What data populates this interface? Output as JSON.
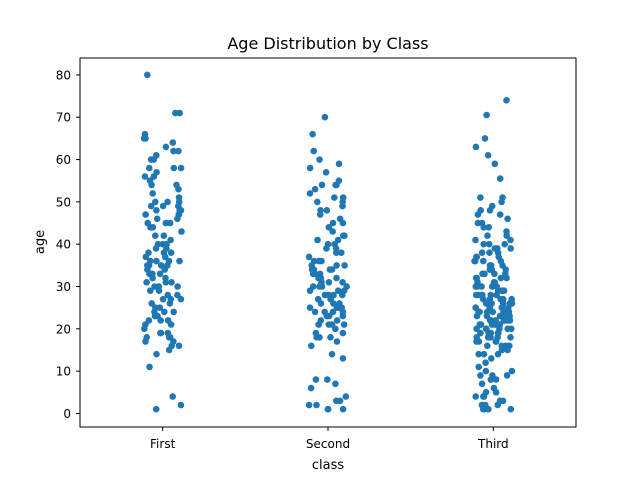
{
  "chart_data": {
    "type": "scatter",
    "subtype": "strip",
    "title": "Age Distribution by Class",
    "xlabel": "class",
    "ylabel": "age",
    "categories": [
      "First",
      "Second",
      "Third"
    ],
    "ylim": [
      -3.2,
      84
    ],
    "yticks": [
      0,
      10,
      20,
      30,
      40,
      50,
      60,
      70,
      80
    ],
    "grid": false,
    "legend": "none",
    "marker_color": "#1f77b4",
    "series": [
      {
        "category": "First",
        "values": [
          80,
          71,
          71,
          66,
          65,
          65,
          64,
          63,
          62,
          62,
          61,
          60,
          60,
          58,
          58,
          58,
          57,
          56,
          56,
          55,
          54,
          54,
          53,
          52,
          51,
          50,
          50,
          50,
          49,
          49,
          49,
          48,
          48,
          48,
          47,
          47,
          47,
          46,
          46,
          45,
          45,
          45,
          44,
          44,
          43,
          42,
          42,
          41,
          40,
          40,
          40,
          39,
          39,
          38,
          38,
          38,
          37,
          37,
          36,
          36,
          36,
          36,
          35,
          35,
          35,
          35,
          34,
          34,
          33,
          33,
          33,
          32,
          32,
          31,
          31,
          31,
          30,
          30,
          30,
          29,
          29,
          28,
          28,
          27,
          27,
          27,
          26,
          26,
          25,
          25,
          24,
          24,
          24,
          23,
          23,
          22,
          22,
          22,
          21,
          21,
          20,
          19,
          19,
          19,
          18,
          18,
          18,
          17,
          17,
          16,
          16,
          15,
          14,
          11,
          4,
          2,
          1
        ]
      },
      {
        "category": "Second",
        "values": [
          70,
          66,
          62,
          60,
          59,
          58,
          57,
          55,
          54,
          54,
          54,
          53,
          52,
          51,
          51,
          50,
          50,
          49,
          48,
          48,
          47,
          46,
          45,
          45,
          44,
          43,
          42,
          42,
          41,
          41,
          40,
          40,
          39,
          39,
          38,
          38,
          37,
          36,
          36,
          36,
          35,
          35,
          35,
          34,
          34,
          34,
          34,
          33,
          33,
          33,
          32,
          32,
          32,
          31,
          31,
          31,
          30,
          30,
          30,
          30,
          29,
          29,
          29,
          28,
          28,
          28,
          28,
          27,
          27,
          27,
          26,
          26,
          26,
          25,
          25,
          25,
          25,
          24,
          24,
          24,
          24,
          23,
          23,
          23,
          22,
          22,
          21,
          21,
          21,
          21,
          20,
          19,
          19,
          18,
          18,
          18,
          17,
          16,
          14,
          13,
          8,
          8,
          7,
          6,
          4,
          3,
          3,
          2,
          2,
          1,
          1,
          1
        ]
      },
      {
        "category": "Third",
        "values": [
          74,
          70.5,
          65,
          63,
          61,
          59,
          55.5,
          51,
          51,
          50,
          49,
          48,
          48,
          47,
          47,
          46,
          45,
          45,
          44,
          44,
          43,
          42,
          42,
          41,
          41,
          40,
          40,
          40,
          39,
          39,
          39,
          38,
          38,
          38,
          37,
          37,
          37,
          36,
          36,
          36,
          36,
          35,
          35,
          35,
          34,
          34,
          34,
          34,
          33,
          33,
          33,
          33,
          32,
          32,
          32,
          32,
          31,
          31,
          31,
          30,
          30,
          30,
          30,
          30,
          29,
          29,
          29,
          29,
          28,
          28,
          28,
          28,
          28,
          27,
          27,
          27,
          27,
          27,
          26,
          26,
          26,
          26,
          26,
          25,
          25,
          25,
          25,
          25,
          25,
          24,
          24,
          24,
          24,
          24,
          24,
          23,
          23,
          23,
          23,
          23,
          23,
          22,
          22,
          22,
          22,
          22,
          22,
          22,
          21,
          21,
          21,
          21,
          21,
          21,
          21,
          20,
          20,
          20,
          20,
          20,
          20,
          19,
          19,
          19,
          19,
          19,
          18,
          18,
          18,
          18,
          18,
          18,
          17,
          17,
          17,
          17,
          16,
          16,
          16,
          16,
          15,
          15,
          14,
          14,
          14,
          13,
          12,
          11,
          10,
          10,
          9,
          9,
          9,
          8,
          8,
          7,
          6,
          5,
          5,
          4,
          4,
          4,
          3,
          3,
          2,
          2,
          2,
          1,
          1,
          1,
          1
        ]
      }
    ]
  }
}
